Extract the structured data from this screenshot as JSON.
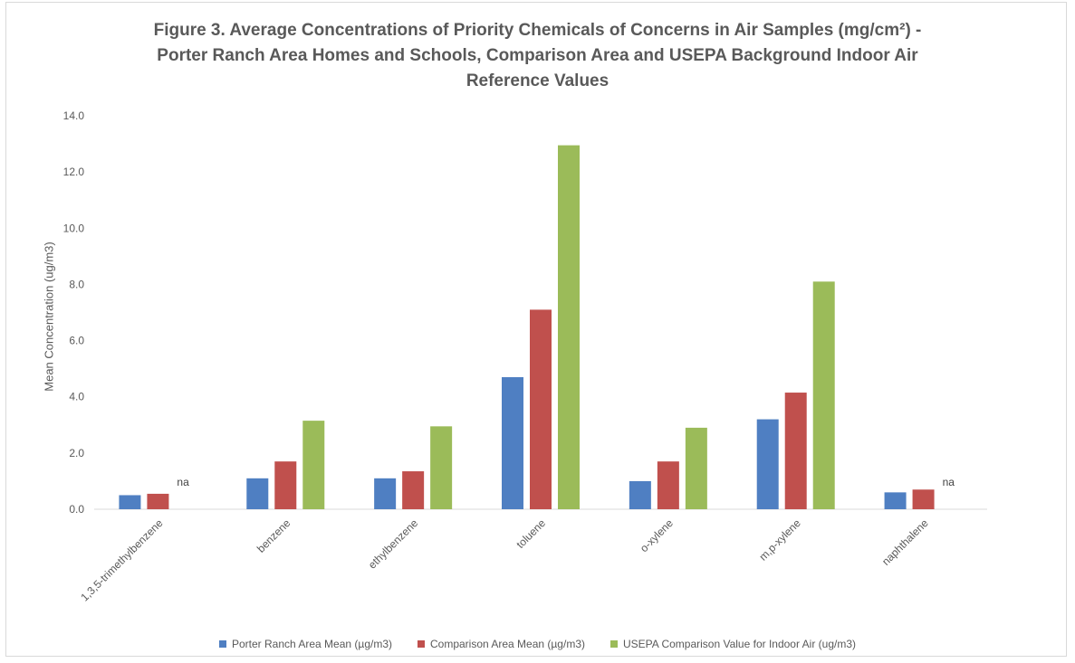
{
  "chart_data": {
    "type": "bar",
    "title_lines": [
      "Figure 3. Average Concentrations of Priority Chemicals of Concerns in Air Samples (mg/cm²) -",
      "Porter Ranch Area Homes and Schools, Comparison Area and USEPA Background Indoor Air",
      "Reference Values"
    ],
    "xlabel": "",
    "ylabel": "Mean Concentration (ug/m3)",
    "ylim": [
      0,
      14
    ],
    "yticks": [
      "0.0",
      "2.0",
      "4.0",
      "6.0",
      "8.0",
      "10.0",
      "12.0",
      "14.0"
    ],
    "grid": false,
    "legend_position": "bottom",
    "categories": [
      "1,3,5-trimethylbenzene",
      "benzene",
      "ethylbenzene",
      "toluene",
      "o-xylene",
      "m,p-xylene",
      "naphthalene"
    ],
    "series": [
      {
        "name": "Porter Ranch Area Mean (µg/m3)",
        "color": "#4f7fc2",
        "values": [
          0.5,
          1.1,
          1.1,
          4.7,
          1.0,
          3.2,
          0.6
        ]
      },
      {
        "name": "Comparison Area Mean (µg/m3)",
        "color": "#c0504d",
        "values": [
          0.55,
          1.7,
          1.35,
          7.1,
          1.7,
          4.15,
          0.7
        ]
      },
      {
        "name": "USEPA Comparison Value for Indoor Air (ug/m3)",
        "color": "#9bbb59",
        "values": [
          null,
          3.15,
          2.95,
          12.95,
          2.9,
          8.1,
          null
        ]
      }
    ],
    "annotations": [
      {
        "category": "1,3,5-trimethylbenzene",
        "series": "USEPA Comparison Value for Indoor Air (ug/m3)",
        "text": "na"
      },
      {
        "category": "naphthalene",
        "series": "USEPA Comparison Value for Indoor Air (ug/m3)",
        "text": "na"
      }
    ]
  }
}
